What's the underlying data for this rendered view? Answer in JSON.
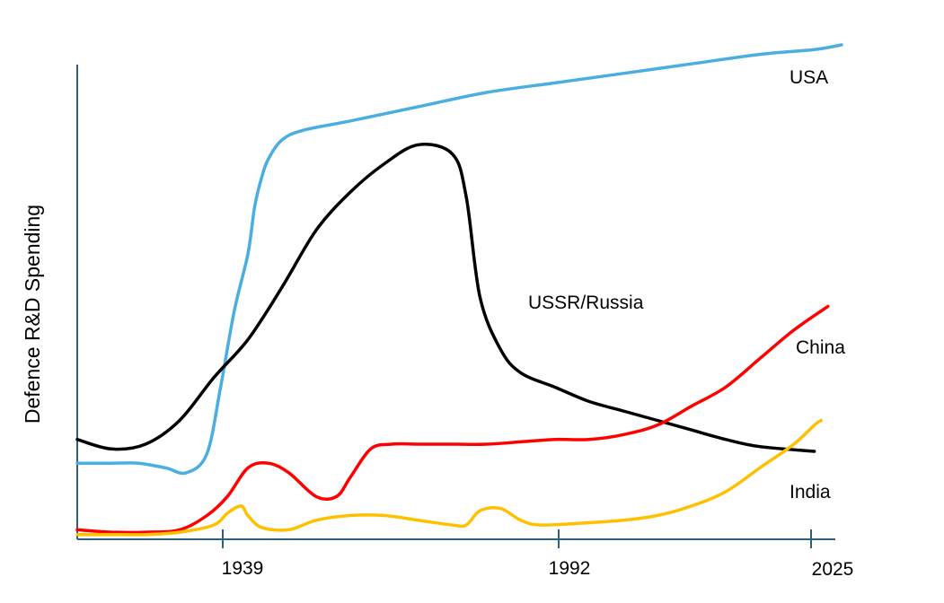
{
  "chart_data": {
    "type": "line",
    "title": "",
    "xlabel": "",
    "ylabel": "Defence R&D Spending",
    "x_ticks": [
      "1939",
      "1992",
      "2025"
    ],
    "y_ticks": [],
    "grid": false,
    "legend": "none (series labelled directly on the lines)",
    "series": [
      {
        "name": "USA",
        "color": "#4aaee0",
        "points": [
          [
            1915,
            16
          ],
          [
            1920,
            16
          ],
          [
            1924,
            16
          ],
          [
            1928,
            15
          ],
          [
            1931,
            14
          ],
          [
            1934,
            18
          ],
          [
            1936,
            32
          ],
          [
            1938,
            48
          ],
          [
            1940,
            60
          ],
          [
            1941,
            70
          ],
          [
            1942,
            76
          ],
          [
            1943,
            80
          ],
          [
            1945,
            84
          ],
          [
            1948,
            86
          ],
          [
            1955,
            88
          ],
          [
            1965,
            91
          ],
          [
            1975,
            94
          ],
          [
            1985,
            96
          ],
          [
            1995,
            98
          ],
          [
            2005,
            100
          ],
          [
            2015,
            102
          ],
          [
            2023,
            103
          ],
          [
            2027,
            104
          ]
        ]
      },
      {
        "name": "USSR/Russia",
        "color": "#000000",
        "points": [
          [
            1915,
            21
          ],
          [
            1920,
            19
          ],
          [
            1925,
            20
          ],
          [
            1930,
            25
          ],
          [
            1935,
            34
          ],
          [
            1940,
            42
          ],
          [
            1945,
            53
          ],
          [
            1950,
            65
          ],
          [
            1955,
            73
          ],
          [
            1960,
            79
          ],
          [
            1965,
            83
          ],
          [
            1970,
            81
          ],
          [
            1972,
            72
          ],
          [
            1974,
            51
          ],
          [
            1977,
            40
          ],
          [
            1980,
            35
          ],
          [
            1985,
            32
          ],
          [
            1990,
            29
          ],
          [
            1995,
            27
          ],
          [
            2000,
            25
          ],
          [
            2005,
            23
          ],
          [
            2010,
            21
          ],
          [
            2015,
            19.5
          ],
          [
            2023,
            18.5
          ]
        ]
      },
      {
        "name": "China",
        "color": "#ff0000",
        "points": [
          [
            1915,
            2
          ],
          [
            1920,
            1.5
          ],
          [
            1925,
            1.5
          ],
          [
            1930,
            2
          ],
          [
            1934,
            5
          ],
          [
            1937,
            9
          ],
          [
            1940,
            15
          ],
          [
            1943,
            16
          ],
          [
            1946,
            14
          ],
          [
            1950,
            9
          ],
          [
            1953,
            9
          ],
          [
            1955,
            13
          ],
          [
            1958,
            19
          ],
          [
            1961,
            20
          ],
          [
            1965,
            20
          ],
          [
            1970,
            20
          ],
          [
            1975,
            20
          ],
          [
            1980,
            20.5
          ],
          [
            1985,
            21
          ],
          [
            1990,
            21
          ],
          [
            1995,
            22
          ],
          [
            2000,
            24
          ],
          [
            2005,
            28
          ],
          [
            2010,
            32
          ],
          [
            2015,
            38
          ],
          [
            2020,
            44
          ],
          [
            2025,
            49
          ]
        ]
      },
      {
        "name": "India",
        "color": "#ffc000",
        "points": [
          [
            1915,
            1
          ],
          [
            1920,
            1
          ],
          [
            1925,
            1
          ],
          [
            1930,
            1.5
          ],
          [
            1935,
            3
          ],
          [
            1937,
            5.5
          ],
          [
            1939,
            7
          ],
          [
            1940,
            5
          ],
          [
            1942,
            2.5
          ],
          [
            1946,
            2
          ],
          [
            1950,
            4
          ],
          [
            1955,
            5
          ],
          [
            1960,
            5
          ],
          [
            1965,
            4
          ],
          [
            1970,
            3
          ],
          [
            1972,
            3
          ],
          [
            1974,
            6
          ],
          [
            1977,
            6.5
          ],
          [
            1980,
            4
          ],
          [
            1983,
            3
          ],
          [
            1990,
            3.5
          ],
          [
            1995,
            4
          ],
          [
            2000,
            5
          ],
          [
            2005,
            7
          ],
          [
            2010,
            10
          ],
          [
            2015,
            15
          ],
          [
            2020,
            20
          ],
          [
            2023,
            24
          ],
          [
            2024,
            25
          ]
        ]
      }
    ],
    "annotations": [
      {
        "text": "USA"
      },
      {
        "text": "USSR/Russia"
      },
      {
        "text": "China"
      },
      {
        "text": "India"
      }
    ]
  }
}
